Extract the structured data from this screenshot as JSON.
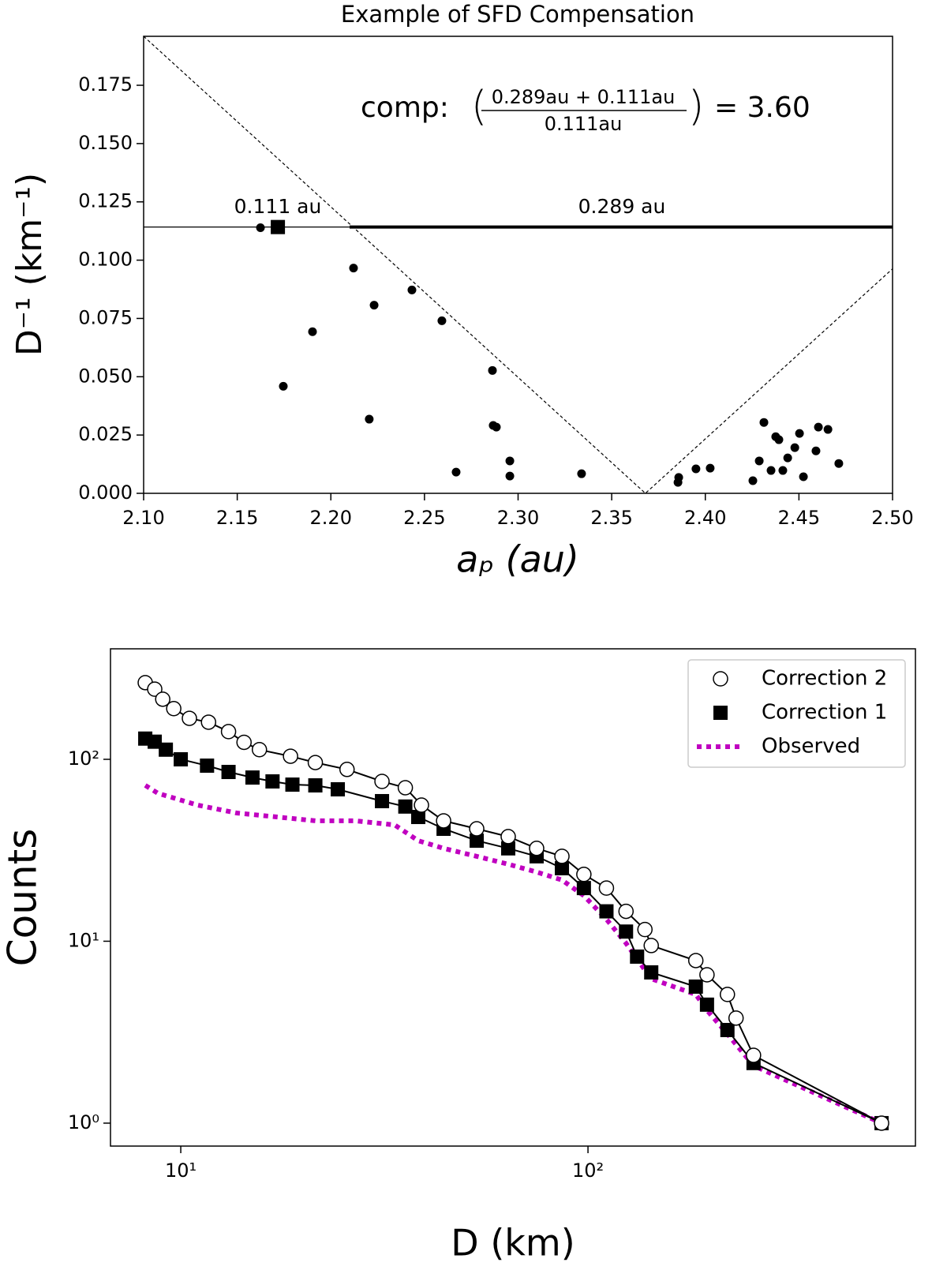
{
  "chart_data": [
    {
      "type": "scatter",
      "title": "Example of SFD Compensation",
      "xlabel": "aₚ (au)",
      "ylabel": "D⁻¹ (km⁻¹)",
      "xlim": [
        2.1,
        2.5
      ],
      "ylim": [
        0,
        0.196
      ],
      "xticks": [
        {
          "value": 2.1,
          "label": "2.10"
        },
        {
          "value": 2.15,
          "label": "2.15"
        },
        {
          "value": 2.2,
          "label": "2.20"
        },
        {
          "value": 2.25,
          "label": "2.25"
        },
        {
          "value": 2.3,
          "label": "2.30"
        },
        {
          "value": 2.35,
          "label": "2.35"
        },
        {
          "value": 2.4,
          "label": "2.40"
        },
        {
          "value": 2.45,
          "label": "2.45"
        },
        {
          "value": 2.5,
          "label": "2.50"
        }
      ],
      "yticks": [
        {
          "value": 0,
          "label": "0.000"
        },
        {
          "value": 0.025,
          "label": "0.025"
        },
        {
          "value": 0.05,
          "label": "0.050"
        },
        {
          "value": 0.075,
          "label": "0.075"
        },
        {
          "value": 0.1,
          "label": "0.100"
        },
        {
          "value": 0.125,
          "label": "0.125"
        },
        {
          "value": 0.15,
          "label": "0.150"
        },
        {
          "value": 0.175,
          "label": "0.175"
        }
      ],
      "series": [
        {
          "marker": "circle",
          "color": "#000000",
          "x": [
            2.1624,
            2.2121,
            2.2231,
            2.2433,
            2.2593,
            2.1902,
            2.1746,
            2.2205,
            2.2863,
            2.2867,
            2.2884,
            2.2669,
            2.2956,
            2.2956,
            2.3339,
            2.3858,
            2.3854,
            2.395,
            2.4026,
            2.4313,
            2.4288,
            2.4376,
            2.4393,
            2.4351,
            2.4414,
            2.444,
            2.4478,
            2.4503,
            2.4254,
            2.4524,
            2.4591,
            2.4604,
            2.4655,
            2.4713
          ],
          "values": [
            0.1139,
            0.0966,
            0.0807,
            0.0872,
            0.074,
            0.0693,
            0.0459,
            0.0318,
            0.0527,
            0.0291,
            0.0284,
            0.0091,
            0.0139,
            0.0074,
            0.0084,
            0.0068,
            0.0047,
            0.0105,
            0.0108,
            0.0304,
            0.0139,
            0.0243,
            0.023,
            0.0098,
            0.0098,
            0.0152,
            0.0196,
            0.0257,
            0.0054,
            0.0071,
            0.0182,
            0.0284,
            0.0274,
            0.0128
          ]
        },
        {
          "marker": "square",
          "color": "#000000",
          "x": [
            2.1717
          ],
          "values": [
            0.1142
          ]
        }
      ],
      "lines": [
        {
          "x": [
            2.1,
            2.21
          ],
          "y": [
            0.1142,
            0.1142
          ],
          "style": "solid",
          "width": 1.2
        },
        {
          "x": [
            2.21,
            2.5
          ],
          "y": [
            0.1142,
            0.1142
          ],
          "style": "solid",
          "width": 4
        },
        {
          "x": [
            2.1,
            2.368,
            2.5
          ],
          "y": [
            0.196,
            0,
            0.0963
          ],
          "style": "dashed",
          "width": 1.2
        }
      ],
      "annotations": [
        "0.111 au",
        "0.289 au"
      ],
      "formula": {
        "lead": "comp:",
        "numerator": "0.289au + 0.111au",
        "denominator": "0.111au",
        "result": "= 3.60"
      }
    },
    {
      "type": "line",
      "xlabel": "D (km)",
      "ylabel": "Counts",
      "log_x": true,
      "log_y": true,
      "xlim": [
        6.72,
        637
      ],
      "ylim": [
        0.748,
        405
      ],
      "xticks": [
        {
          "value": 10,
          "label": "10¹"
        },
        {
          "value": 100,
          "label": "10²"
        }
      ],
      "yticks": [
        {
          "value": 1,
          "label": "10⁰"
        },
        {
          "value": 10,
          "label": "10¹"
        },
        {
          "value": 100,
          "label": "10²"
        }
      ],
      "legend": "upper right",
      "series": [
        {
          "name": "Correction 2",
          "marker": "circle",
          "color": "#000000",
          "fill": "#ffffff",
          "x": [
            8.18,
            8.63,
            9.03,
            9.61,
            10.5,
            11.7,
            13.1,
            14.3,
            15.6,
            18.6,
            21.4,
            25.6,
            31.2,
            35.6,
            39.0,
            44.2,
            53.3,
            63.7,
            74.8,
            86.3,
            97.7,
            111,
            124,
            138,
            143,
            184,
            196,
            220,
            231,
            255,
            526
          ],
          "values": [
            264,
            243,
            214,
            190,
            168,
            160,
            142,
            124,
            113,
            104,
            96,
            88,
            75.6,
            69.8,
            56.0,
            45.9,
            41.5,
            37.6,
            32.4,
            29.3,
            23.3,
            19.6,
            14.6,
            11.6,
            9.47,
            7.83,
            6.54,
            5.1,
            3.78,
            2.36,
            1.0
          ]
        },
        {
          "name": "Correction 1",
          "marker": "square",
          "color": "#000000",
          "fill": "#000000",
          "x": [
            8.18,
            8.63,
            9.19,
            10.0,
            11.6,
            13.1,
            15.0,
            16.8,
            18.8,
            21.4,
            24.3,
            31.2,
            35.6,
            38.3,
            44.2,
            53.3,
            63.7,
            74.8,
            86.3,
            97.7,
            111,
            124,
            132,
            143,
            184,
            196,
            220,
            255,
            526
          ],
          "values": [
            130,
            125,
            113,
            100,
            92.3,
            85.2,
            79.4,
            75.6,
            72.6,
            71.9,
            68.4,
            58.9,
            55.0,
            48.2,
            41.5,
            35.7,
            32.4,
            29.3,
            25.2,
            19.6,
            14.6,
            11.3,
            8.23,
            6.74,
            5.63,
            4.48,
            3.25,
            2.14,
            1.0
          ]
        },
        {
          "name": "Observed",
          "marker": "none",
          "color": "#c000c0",
          "style": "dotted",
          "x": [
            8.18,
            8.79,
            11.0,
            13.7,
            17.2,
            21.4,
            26.8,
            33.5,
            38.3,
            44.2,
            53.3,
            63.7,
            74.8,
            86.3,
            97.7,
            111,
            124,
            132,
            143,
            184,
            196,
            220,
            255,
            526
          ],
          "values": [
            71.9,
            65.0,
            56.0,
            50.7,
            48.2,
            45.9,
            45.9,
            43.6,
            35.7,
            32.4,
            29.3,
            26.5,
            24.0,
            21.7,
            17.8,
            13.2,
            9.75,
            7.98,
            6.22,
            5.1,
            4.17,
            3.09,
            2.07,
            1.0
          ]
        }
      ]
    }
  ]
}
